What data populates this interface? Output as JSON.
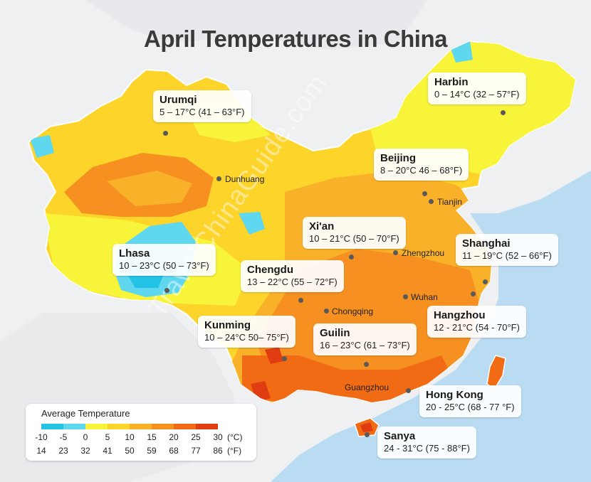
{
  "title": "April Temperatures in China",
  "watermark": "TravelChinaGuide.com",
  "cities": [
    {
      "name": "Harbin",
      "temp": "0 – 14°C (32 – 57°F)"
    },
    {
      "name": "Urumqi",
      "temp": "5 – 17°C (41 – 63°F)"
    },
    {
      "name": "Beijing",
      "temp": "8 – 20°C 46 – 68°F)"
    },
    {
      "name": "Xi'an",
      "temp": "10 – 21°C (50 – 70°F)"
    },
    {
      "name": "Shanghai",
      "temp": "11 – 19°C (52 – 66°F)"
    },
    {
      "name": "Lhasa",
      "temp": "10 – 23°C (50 – 73°F)"
    },
    {
      "name": "Chengdu",
      "temp": "13 – 22°C (55 – 72°F)"
    },
    {
      "name": "Hangzhou",
      "temp": "12 - 21°C (54 - 70°F)"
    },
    {
      "name": "Kunming",
      "temp": "10 – 24°C 50– 75°F)"
    },
    {
      "name": "Guilin",
      "temp": "16 – 23°C (61 – 73°F)"
    },
    {
      "name": "Hong Kong",
      "temp": "20 - 25°C (68 - 77 °F)"
    },
    {
      "name": "Sanya",
      "temp": "24 - 31°C (75 - 88°F)"
    }
  ],
  "minor_places": [
    "Dunhuang",
    "Tianjin",
    "Zhengzhou",
    "Wuhan",
    "Chongqing",
    "Guangzhou"
  ],
  "legend": {
    "title": "Average Temperature",
    "celsius": [
      "-10",
      "-5",
      "0",
      "5",
      "10",
      "15",
      "20",
      "25",
      "30"
    ],
    "fahrenheit": [
      "14",
      "23",
      "32",
      "41",
      "50",
      "59",
      "68",
      "77",
      "86"
    ],
    "unit_c": "(°C)",
    "unit_f": "(°F)",
    "colors": [
      "#23c3e6",
      "#5fd8ef",
      "#f8f43a",
      "#fcd42a",
      "#f9b12a",
      "#f69020",
      "#f16a14",
      "#e03c12",
      "#c41c0e"
    ]
  },
  "colors": {
    "sea": "#b9dcf3",
    "neighbor_land": "#eef0f2",
    "title": "#3a3a3a"
  }
}
